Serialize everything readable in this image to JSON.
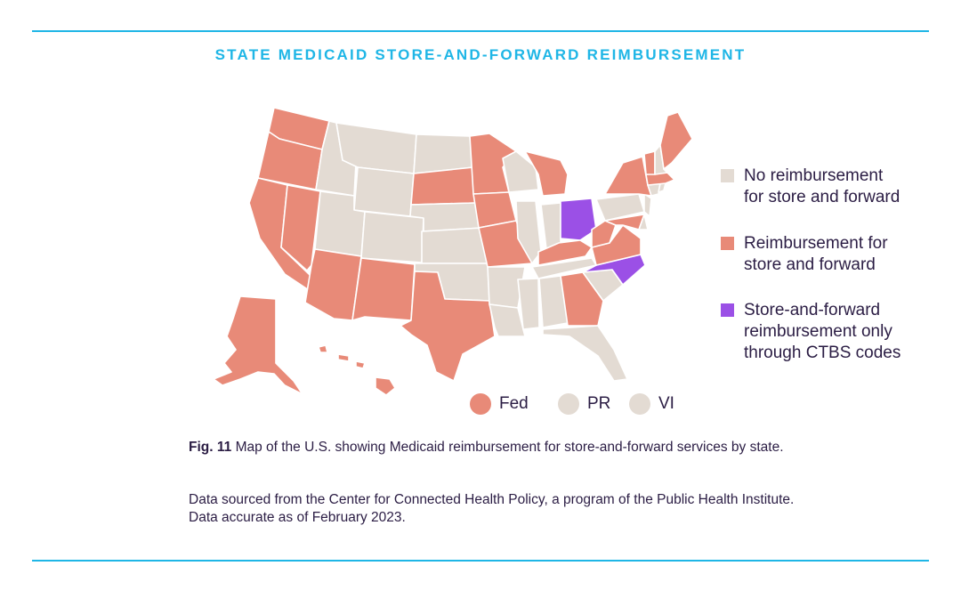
{
  "title": "STATE MEDICAID STORE-AND-FORWARD REIMBURSEMENT",
  "colors": {
    "rule": "#1fb6e6",
    "title": "#1fb6e6",
    "none": "#e3dbd3",
    "reimbursed": "#e88a78",
    "ctbs": "#9b50e6",
    "text": "#2b1d44"
  },
  "legend": {
    "none": {
      "line1": "No reimbursement",
      "line2": "for store and forward"
    },
    "reimbursed": {
      "line1": "Reimbursement for",
      "line2": "store and forward"
    },
    "ctbs": {
      "line1": "Store-and-forward",
      "line2": "reimbursement only",
      "line3": "through CTBS codes"
    }
  },
  "territories": [
    {
      "label": "Fed",
      "category": "reimbursed"
    },
    {
      "label": "PR",
      "category": "none"
    },
    {
      "label": "VI",
      "category": "none"
    }
  ],
  "states": {
    "reimbursed": [
      "WA",
      "OR",
      "CA",
      "NV",
      "AZ",
      "NM",
      "TX",
      "AK",
      "HI",
      "SD",
      "MN",
      "IA",
      "MO",
      "MI",
      "KY",
      "WV",
      "VA",
      "MD",
      "GA",
      "NY",
      "VT",
      "ME",
      "MA"
    ],
    "ctbs": [
      "OH",
      "NC"
    ],
    "none": [
      "ID",
      "MT",
      "WY",
      "UT",
      "CO",
      "ND",
      "NE",
      "KS",
      "OK",
      "AR",
      "LA",
      "MS",
      "AL",
      "FL",
      "SC",
      "TN",
      "IL",
      "IN",
      "WI",
      "PA",
      "NJ",
      "DE",
      "CT",
      "RI",
      "NH"
    ]
  },
  "caption": {
    "fig": "Fig. 11",
    "text": "Map of the U.S. showing Medicaid reimbursement for store-and-forward services by state."
  },
  "source": {
    "line1": "Data sourced from the Center for Connected Health Policy, a program of the Public Health Institute.",
    "line2": "Data accurate as of February 2023."
  }
}
